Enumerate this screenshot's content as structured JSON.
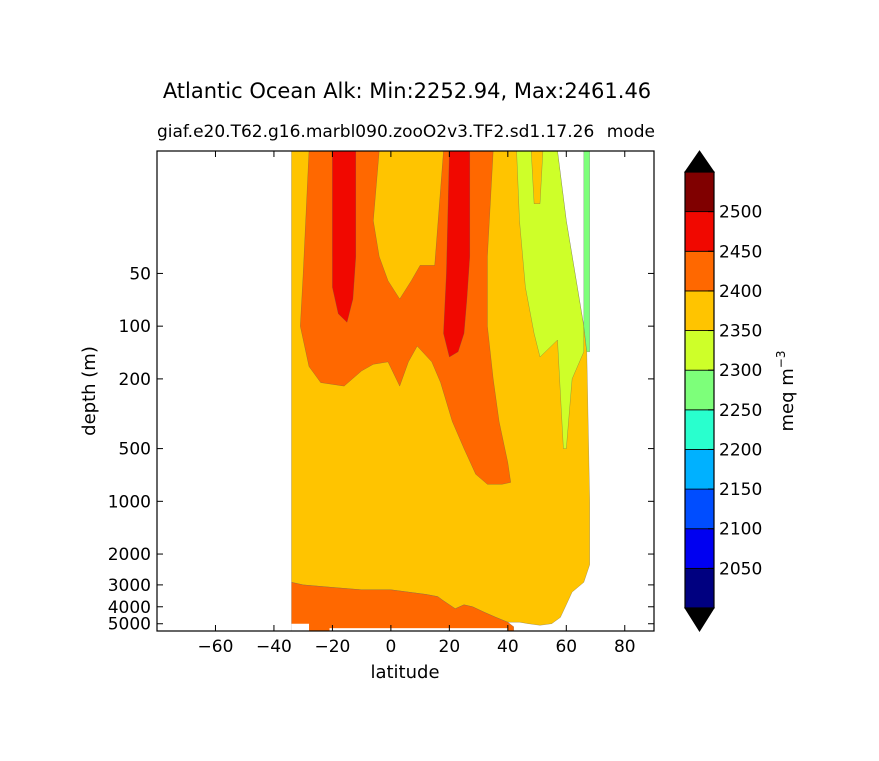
{
  "chart_data": {
    "type": "contourf",
    "title": "Atlantic Ocean Alk: Min:2252.94, Max:2461.46",
    "subtitle_left": "giaf.e20.T62.g16.marbl090.zooO2v3.TF2.sd1.17.26",
    "subtitle_right": "mode",
    "xlabel": "latitude",
    "ylabel": "depth (m)",
    "xlim": [
      -80,
      90
    ],
    "ylim": [
      5500,
      10
    ],
    "yscale": "log",
    "x_ticks": [
      -60,
      -40,
      -20,
      0,
      20,
      40,
      60,
      80
    ],
    "x_tick_labels": [
      "−60",
      "−40",
      "−20",
      "0",
      "20",
      "40",
      "60",
      "80"
    ],
    "y_ticks": [
      50,
      100,
      200,
      500,
      1000,
      2000,
      3000,
      4000,
      5000
    ],
    "y_tick_labels": [
      "50",
      "100",
      "200",
      "500",
      "1000",
      "2000",
      "3000",
      "4000",
      "5000"
    ],
    "colorbar": {
      "label": "meq m",
      "label_exponent": "−3",
      "levels": [
        2000,
        2050,
        2100,
        2150,
        2200,
        2250,
        2300,
        2350,
        2400,
        2450,
        2500,
        2550
      ],
      "tick_labels": [
        "2050",
        "2100",
        "2150",
        "2200",
        "2250",
        "2300",
        "2350",
        "2400",
        "2450",
        "2500"
      ],
      "colors": [
        "#000080",
        "#0000f1",
        "#004dff",
        "#00b1ff",
        "#29ffce",
        "#7dff7a",
        "#ceff29",
        "#ffc400",
        "#ff6800",
        "#f10800",
        "#800000"
      ],
      "extend": "both",
      "under_color": "#000000",
      "over_color": "#000000"
    },
    "regions": [
      {
        "name": "ocean-2350-2400",
        "value_range": [
          2350,
          2400
        ],
        "color": "#ffc400",
        "polygon": [
          [
            -34,
            10
          ],
          [
            57,
            10
          ],
          [
            60,
            25
          ],
          [
            66,
            100
          ],
          [
            67,
            140
          ],
          [
            68,
            1000
          ],
          [
            68,
            2300
          ],
          [
            66,
            2900
          ],
          [
            62,
            3300
          ],
          [
            60,
            3900
          ],
          [
            58,
            4600
          ],
          [
            55,
            5000
          ],
          [
            51,
            5100
          ],
          [
            47,
            5000
          ],
          [
            44,
            4900
          ],
          [
            40,
            4900
          ],
          [
            36,
            4600
          ],
          [
            32,
            4300
          ],
          [
            28,
            4000
          ],
          [
            25,
            3900
          ],
          [
            22,
            4100
          ],
          [
            18,
            3700
          ],
          [
            16,
            3500
          ],
          [
            12,
            3400
          ],
          [
            6,
            3300
          ],
          [
            0,
            3200
          ],
          [
            -10,
            3200
          ],
          [
            -20,
            3100
          ],
          [
            -30,
            3000
          ],
          [
            -34,
            2900
          ]
        ]
      },
      {
        "name": "deep-2400-2450",
        "value_range": [
          2400,
          2450
        ],
        "color": "#ff6800",
        "polygon": [
          [
            -34,
            2900
          ],
          [
            -30,
            3000
          ],
          [
            -20,
            3100
          ],
          [
            -10,
            3200
          ],
          [
            0,
            3200
          ],
          [
            6,
            3300
          ],
          [
            12,
            3400
          ],
          [
            16,
            3500
          ],
          [
            18,
            3700
          ],
          [
            22,
            4100
          ],
          [
            25,
            3900
          ],
          [
            28,
            4000
          ],
          [
            32,
            4300
          ],
          [
            36,
            4600
          ],
          [
            40,
            4900
          ],
          [
            42,
            5200
          ],
          [
            42,
            5600
          ],
          [
            -34,
            5600
          ]
        ]
      },
      {
        "name": "surface-2400-2450-south",
        "value_range": [
          2400,
          2450
        ],
        "color": "#ff6800",
        "polygon": [
          [
            -28,
            10
          ],
          [
            -4,
            10
          ],
          [
            -6,
            25
          ],
          [
            -4,
            40
          ],
          [
            -1,
            55
          ],
          [
            3,
            70
          ],
          [
            7,
            55
          ],
          [
            10,
            45
          ],
          [
            15,
            45
          ],
          [
            18,
            10
          ],
          [
            35,
            10
          ],
          [
            33,
            40
          ],
          [
            33,
            100
          ],
          [
            35,
            200
          ],
          [
            37,
            350
          ],
          [
            40,
            600
          ],
          [
            41,
            780
          ],
          [
            38,
            800
          ],
          [
            33,
            800
          ],
          [
            29,
            700
          ],
          [
            25,
            500
          ],
          [
            21,
            350
          ],
          [
            17,
            210
          ],
          [
            14,
            160
          ],
          [
            9,
            130
          ],
          [
            6,
            160
          ],
          [
            3,
            220
          ],
          [
            -1,
            160
          ],
          [
            -6,
            165
          ],
          [
            -10,
            180
          ],
          [
            -16,
            220
          ],
          [
            -24,
            210
          ],
          [
            -28,
            170
          ],
          [
            -31,
            100
          ],
          [
            -30,
            50
          ]
        ]
      },
      {
        "name": "surface-2450-2500-a",
        "value_range": [
          2450,
          2500
        ],
        "color": "#f10800",
        "polygon": [
          [
            -20,
            10
          ],
          [
            -12,
            10
          ],
          [
            -12,
            40
          ],
          [
            -13,
            70
          ],
          [
            -15,
            95
          ],
          [
            -18,
            85
          ],
          [
            -20,
            60
          ],
          [
            -20,
            30
          ]
        ]
      },
      {
        "name": "surface-2450-2500-b",
        "value_range": [
          2450,
          2500
        ],
        "color": "#f10800",
        "polygon": [
          [
            20,
            10
          ],
          [
            27,
            10
          ],
          [
            27,
            40
          ],
          [
            26,
            70
          ],
          [
            25,
            110
          ],
          [
            23,
            140
          ],
          [
            20,
            150
          ],
          [
            18,
            110
          ],
          [
            19,
            50
          ]
        ]
      },
      {
        "name": "subpolar-2300-2350",
        "value_range": [
          2300,
          2350
        ],
        "color": "#ceff29",
        "polygon": [
          [
            43,
            10
          ],
          [
            48,
            10
          ],
          [
            49,
            20
          ],
          [
            51,
            20
          ],
          [
            52,
            10
          ],
          [
            57,
            10
          ],
          [
            60,
            25
          ],
          [
            66,
            100
          ],
          [
            66,
            140
          ],
          [
            62,
            200
          ],
          [
            60,
            500
          ],
          [
            59,
            500
          ],
          [
            57,
            120
          ],
          [
            51,
            150
          ],
          [
            49,
            110
          ],
          [
            46,
            60
          ],
          [
            44,
            25
          ]
        ]
      },
      {
        "name": "subpolar-2250-2300",
        "value_range": [
          2250,
          2300
        ],
        "color": "#7dff7a",
        "polygon": [
          [
            66,
            10
          ],
          [
            68,
            10
          ],
          [
            68,
            140
          ],
          [
            67,
            140
          ],
          [
            66,
            100
          ]
        ]
      }
    ],
    "mask_rects": [
      {
        "x": [
          14,
          44
        ],
        "depth": [
          3050,
          3200
        ],
        "color": "#ffc400"
      },
      {
        "x": [
          -34,
          -28
        ],
        "depth": [
          5000,
          5600
        ],
        "color": "#ffffff"
      },
      {
        "x": [
          -21,
          40
        ],
        "depth": [
          5300,
          5600
        ],
        "color": "#ffffff"
      }
    ]
  }
}
